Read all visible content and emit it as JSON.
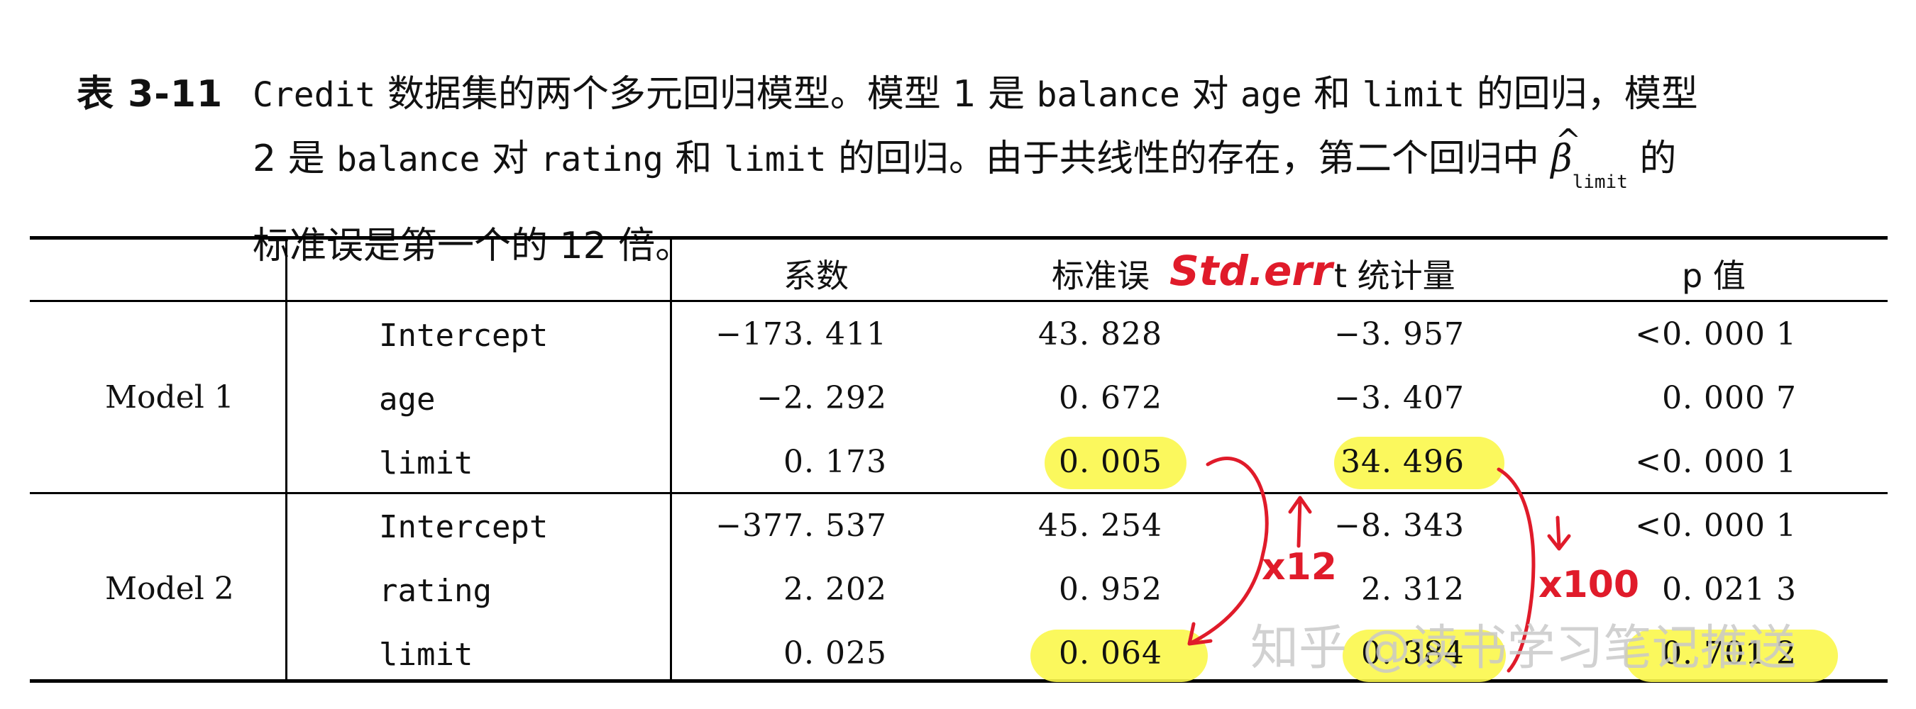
{
  "caption": {
    "label": "表 3-11",
    "segments": [
      {
        "t": "Credit",
        "mono": true
      },
      {
        "t": " 数据集的两个多元回归模型。模型 1 是 "
      },
      {
        "t": "balance",
        "mono": true
      },
      {
        "t": " 对 "
      },
      {
        "t": "age",
        "mono": true
      },
      {
        "t": " 和 "
      },
      {
        "t": "limit",
        "mono": true
      },
      {
        "t": " 的回归，模型"
      },
      {
        "br": true
      },
      {
        "t": "2 是 "
      },
      {
        "t": "balance",
        "mono": true
      },
      {
        "t": " 对 "
      },
      {
        "t": "rating",
        "mono": true
      },
      {
        "t": " 和 "
      },
      {
        "t": "limit",
        "mono": true
      },
      {
        "t": " 的回归。由于共线性的存在，第二个回归中 "
      },
      {
        "beta": "β",
        "hat": "^",
        "sub": "limit"
      },
      {
        "t": " 的"
      },
      {
        "br": true
      },
      {
        "t": "标准误是第一个的 12 倍。"
      }
    ]
  },
  "table": {
    "headers": [
      "系数",
      "标准误",
      "t 统计量",
      "p 值"
    ],
    "models": [
      {
        "name": "Model 1",
        "rows": [
          {
            "var": "Intercept",
            "coef": "−173. 411",
            "se": "43. 828",
            "t": "−3. 957",
            "p": "<0. 000 1"
          },
          {
            "var": "age",
            "coef": "−2. 292",
            "se": "0. 672",
            "t": "−3. 407",
            "p": "0. 000 7"
          },
          {
            "var": "limit",
            "coef": "0. 173",
            "se": "0. 005",
            "t": "34. 496",
            "p": "<0. 000 1"
          }
        ]
      },
      {
        "name": "Model 2",
        "rows": [
          {
            "var": "Intercept",
            "coef": "−377. 537",
            "se": "45. 254",
            "t": "−8. 343",
            "p": "<0. 000 1"
          },
          {
            "var": "rating",
            "coef": "2. 202",
            "se": "0. 952",
            "t": "2. 312",
            "p": "0. 021 3"
          },
          {
            "var": "limit",
            "coef": "0. 025",
            "se": "0. 064",
            "t": "0. 384",
            "p": "0. 701 2"
          }
        ]
      }
    ]
  },
  "annotations": {
    "std_err": "Std.err",
    "x12": "x12",
    "x100": "x100",
    "color": "#e01b2a",
    "highlight_color": "#fbf74b"
  },
  "watermark": "知乎 @读书学习笔记推送"
}
